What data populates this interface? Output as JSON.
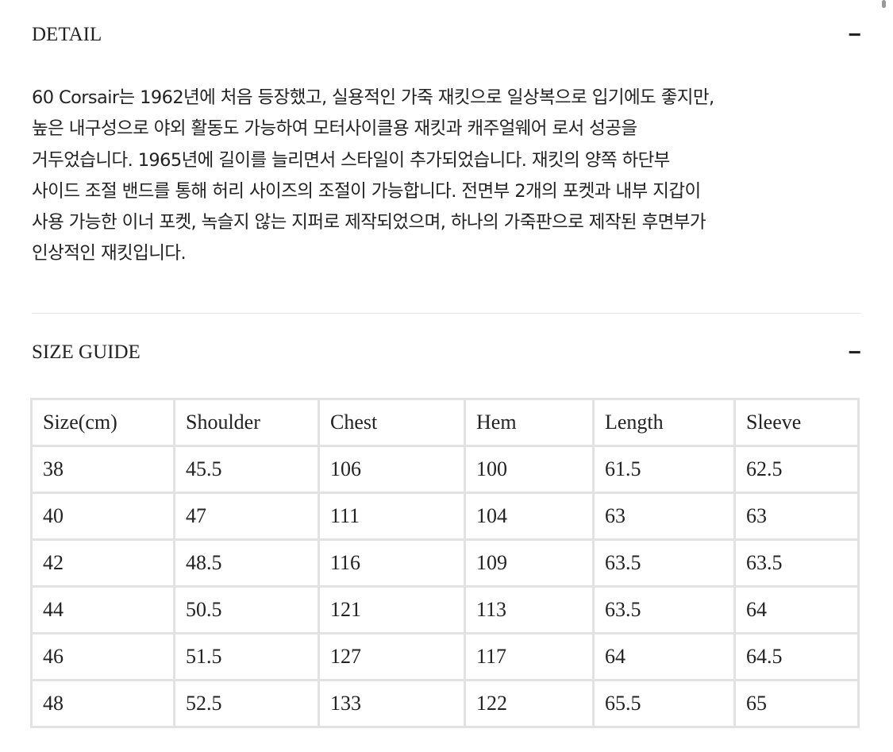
{
  "detail": {
    "title": "DETAIL",
    "toggle": "−",
    "lines": [
      "60 Corsair는 1962년에 처음 등장했고, 실용적인 가죽 재킷으로 일상복으로 입기에도 좋지만,",
      "높은 내구성으로 야외 활동도 가능하여 모터사이클용 재킷과 캐주얼웨어 로서 성공을",
      "거두었습니다. 1965년에 길이를 늘리면서 스타일이 추가되었습니다. 재킷의 양쪽 하단부",
      "사이드 조절 밴드를 통해 허리 사이즈의 조절이 가능합니다. 전면부 2개의 포켓과 내부 지갑이",
      "사용 가능한 이너 포켓, 녹슬지 않는 지퍼로 제작되었으며, 하나의 가죽판으로 제작된 후면부가",
      "인상적인 재킷입니다."
    ]
  },
  "size_guide": {
    "title": "SIZE GUIDE",
    "toggle": "−",
    "headers": [
      "Size(cm)",
      "Shoulder",
      "Chest",
      "Hem",
      "Length",
      "Sleeve"
    ],
    "rows": [
      [
        "38",
        "45.5",
        "106",
        "100",
        "61.5",
        "62.5"
      ],
      [
        "40",
        "47",
        "111",
        "104",
        "63",
        "63"
      ],
      [
        "42",
        "48.5",
        "116",
        "109",
        "63.5",
        "63.5"
      ],
      [
        "44",
        "50.5",
        "121",
        "113",
        "63.5",
        "64"
      ],
      [
        "46",
        "51.5",
        "127",
        "117",
        "64",
        "64.5"
      ],
      [
        "48",
        "52.5",
        "133",
        "122",
        "65.5",
        "65"
      ]
    ]
  }
}
